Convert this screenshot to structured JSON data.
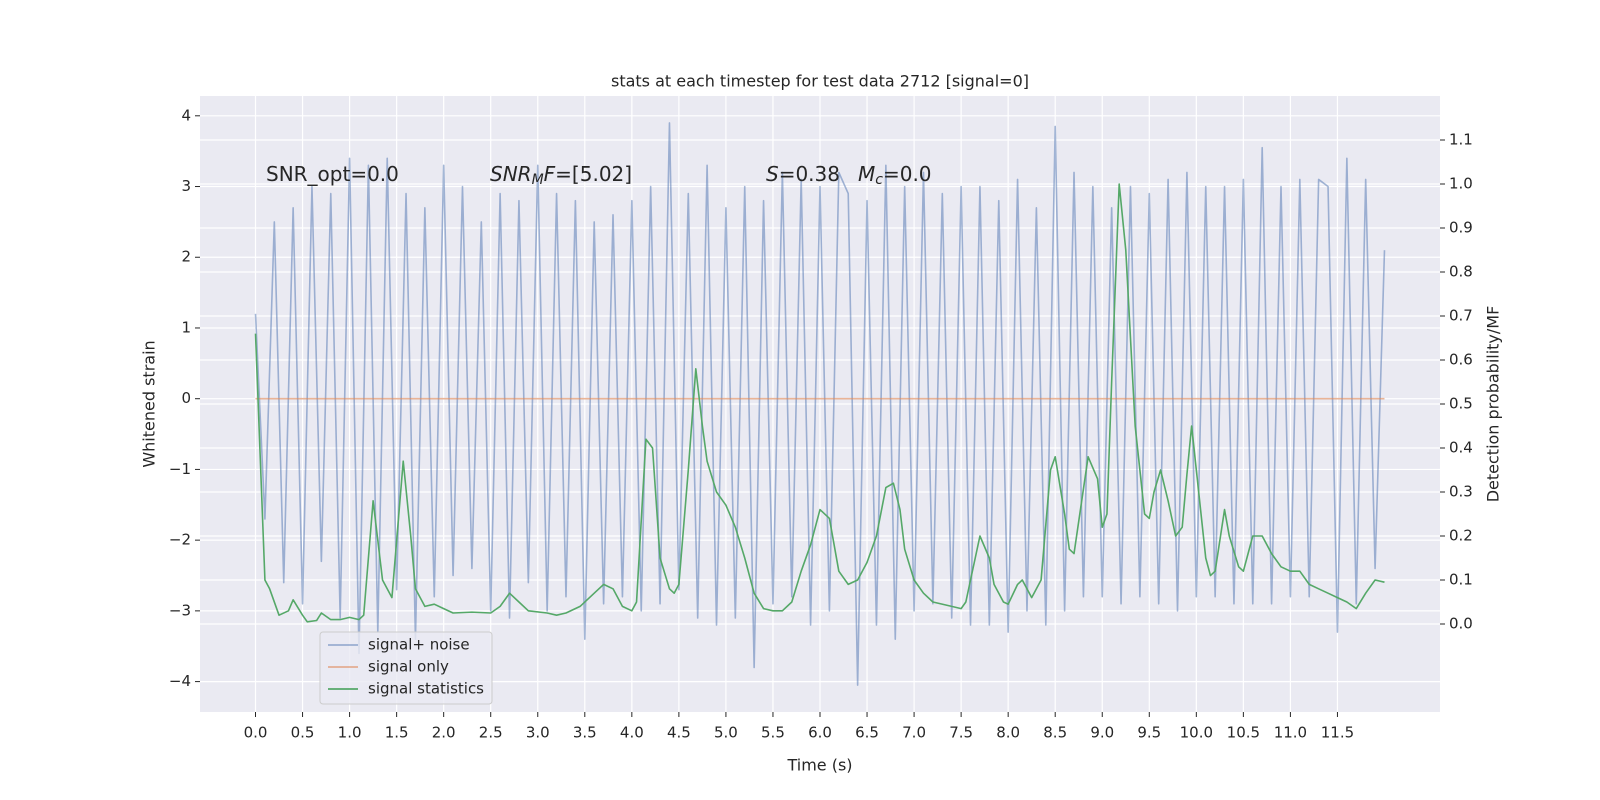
{
  "chart_data": {
    "type": "line",
    "title": "stats at each timestep for test data 2712 [signal=0]",
    "xlabel": "Time (s)",
    "ylabel": "Whitened strain",
    "y2label": "Detection probability/MF",
    "xlim": [
      -0.59,
      12.59
    ],
    "ylim": [
      -4.43,
      4.28
    ],
    "y2lim": [
      -0.2,
      1.2
    ],
    "xticks": [
      {
        "value": 0,
        "label": "0.0"
      },
      0.5,
      {
        "value": 1,
        "label": "1.0"
      },
      1.5,
      {
        "value": 2,
        "label": "2.0"
      },
      2.5,
      {
        "value": 3,
        "label": "3.0"
      },
      3.5,
      {
        "value": 4,
        "label": "4.0"
      },
      4.5,
      {
        "value": 5,
        "label": "5.0"
      },
      5.5,
      {
        "value": 6,
        "label": "6.0"
      },
      6.5,
      {
        "value": 7,
        "label": "7.0"
      },
      7.5,
      {
        "value": 8,
        "label": "8.0"
      },
      8.5,
      {
        "value": 9,
        "label": "9.0"
      },
      9.5,
      {
        "value": 10,
        "label": "10.0"
      },
      10.5,
      {
        "value": 11,
        "label": "11.0"
      },
      11.5
    ],
    "yticks": [
      {
        "value": -4,
        "label": "−4"
      },
      {
        "value": -3,
        "label": "−3"
      },
      {
        "value": -2,
        "label": "−2"
      },
      {
        "value": -1,
        "label": "−1"
      },
      0,
      1,
      2,
      3,
      4
    ],
    "y2ticks": [
      {
        "value": 0,
        "label": "0.0"
      },
      0.1,
      0.2,
      0.3,
      0.4,
      0.5,
      0.6,
      0.7,
      0.8,
      0.9,
      {
        "value": 1,
        "label": "1.0"
      },
      1.1
    ],
    "grid": true,
    "legend": "lower left",
    "annotations": [
      {
        "parts": [
          {
            "text": "SNR_opt=0.0",
            "style": "normal"
          }
        ]
      },
      {
        "parts": [
          {
            "text": "SNR",
            "style": "italic"
          },
          {
            "text": "M",
            "style": "sub"
          },
          {
            "text": "F",
            "style": "italic"
          },
          {
            "text": "=[5.02]",
            "style": "normal"
          }
        ]
      },
      {
        "parts": [
          {
            "text": "S",
            "style": "italic"
          },
          {
            "text": "=0.38",
            "style": "normal"
          }
        ]
      },
      {
        "parts": [
          {
            "text": "M",
            "style": "italic"
          },
          {
            "text": "c",
            "style": "sub"
          },
          {
            "text": "=0.0",
            "style": "normal"
          }
        ]
      }
    ],
    "series": [
      {
        "name": "signal+ noise",
        "color": "#4c72b0",
        "opacity": 0.5,
        "x": [
          0,
          0.1,
          0.2,
          0.3,
          0.4,
          0.5,
          0.6,
          0.7,
          0.8,
          0.9,
          1,
          1.1,
          1.2,
          1.3,
          1.4,
          1.5,
          1.6,
          1.7,
          1.8,
          1.9,
          2,
          2.1,
          2.2,
          2.3,
          2.4,
          2.5,
          2.6,
          2.7,
          2.8,
          2.9,
          3,
          3.1,
          3.2,
          3.3,
          3.4,
          3.5,
          3.6,
          3.7,
          3.8,
          3.9,
          4,
          4.1,
          4.2,
          4.3,
          4.4,
          4.5,
          4.6,
          4.7,
          4.8,
          4.9,
          5,
          5.1,
          5.2,
          5.3,
          5.4,
          5.5,
          5.6,
          5.7,
          5.8,
          5.9,
          6,
          6.1,
          6.2,
          6.3,
          6.4,
          6.5,
          6.6,
          6.7,
          6.8,
          6.9,
          7,
          7.1,
          7.2,
          7.3,
          7.4,
          7.5,
          7.6,
          7.7,
          7.8,
          7.9,
          8,
          8.1,
          8.2,
          8.3,
          8.4,
          8.5,
          8.6,
          8.7,
          8.8,
          8.9,
          9,
          9.1,
          9.2,
          9.3,
          9.4,
          9.5,
          9.6,
          9.7,
          9.8,
          9.9,
          10,
          10.1,
          10.2,
          10.3,
          10.4,
          10.5,
          10.6,
          10.7,
          10.8,
          10.9,
          11,
          11.1,
          11.2,
          11.3,
          11.4,
          11.5,
          11.6,
          11.7,
          11.8,
          11.9,
          12
        ],
        "values": [
          1.2,
          -1.7,
          2.5,
          -2.6,
          2.7,
          -2.9,
          3.0,
          -2.3,
          2.9,
          -3.1,
          3.4,
          -3.6,
          3.3,
          -3.3,
          3.4,
          -2.7,
          2.9,
          -3.4,
          2.7,
          -2.8,
          3.3,
          -2.5,
          3.0,
          -2.4,
          2.5,
          -3.0,
          2.9,
          -3.1,
          2.8,
          -2.6,
          3.3,
          -3.0,
          2.9,
          -2.8,
          2.8,
          -3.4,
          2.5,
          -2.9,
          2.6,
          -2.8,
          2.8,
          -3.0,
          3.0,
          -2.9,
          3.9,
          -2.7,
          2.9,
          -3.1,
          3.3,
          -3.2,
          2.7,
          -3.1,
          3.0,
          -3.8,
          2.8,
          -2.9,
          3.2,
          -2.8,
          3.1,
          -3.2,
          3.0,
          -3.0,
          3.2,
          2.9,
          -4.05,
          2.8,
          -3.2,
          3.3,
          -3.4,
          3.0,
          -3.0,
          3.2,
          -2.9,
          2.9,
          -3.1,
          3.0,
          -3.2,
          3.0,
          -3.2,
          2.8,
          -3.3,
          3.1,
          -3.0,
          2.7,
          -3.2,
          3.85,
          -3.0,
          3.2,
          -2.8,
          3.0,
          -2.8,
          2.7,
          -2.9,
          3.0,
          -2.8,
          2.9,
          -2.9,
          3.1,
          -3.0,
          3.2,
          -2.8,
          3.0,
          -2.8,
          3.0,
          -2.9,
          3.1,
          -2.9,
          3.55,
          -2.9,
          3.0,
          -2.8,
          3.1,
          -2.8,
          3.1,
          3.0,
          -3.3,
          3.4,
          -2.9,
          3.1,
          -2.4,
          2.1
        ]
      },
      {
        "name": "signal only",
        "color": "#dd8452",
        "opacity": 0.6,
        "x": [
          0,
          12
        ],
        "values": [
          0,
          0
        ]
      },
      {
        "name": "signal statistics",
        "color": "#55a868",
        "opacity": 1,
        "axis": "y2",
        "x": [
          0,
          0.1,
          0.15,
          0.25,
          0.35,
          0.4,
          0.5,
          0.55,
          0.65,
          0.7,
          0.8,
          0.9,
          1.0,
          1.1,
          1.15,
          1.25,
          1.35,
          1.45,
          1.57,
          1.65,
          1.7,
          1.8,
          1.9,
          2.0,
          2.1,
          2.3,
          2.5,
          2.6,
          2.7,
          2.8,
          2.9,
          3.1,
          3.2,
          3.3,
          3.45,
          3.6,
          3.7,
          3.8,
          3.9,
          4.0,
          4.05,
          4.15,
          4.22,
          4.3,
          4.4,
          4.45,
          4.5,
          4.6,
          4.68,
          4.75,
          4.8,
          4.9,
          5.0,
          5.1,
          5.2,
          5.3,
          5.4,
          5.5,
          5.6,
          5.7,
          5.8,
          5.9,
          6.0,
          6.1,
          6.2,
          6.3,
          6.4,
          6.5,
          6.6,
          6.7,
          6.78,
          6.85,
          6.9,
          7.0,
          7.1,
          7.2,
          7.4,
          7.5,
          7.55,
          7.6,
          7.7,
          7.8,
          7.85,
          7.95,
          8.0,
          8.1,
          8.15,
          8.25,
          8.35,
          8.45,
          8.5,
          8.6,
          8.65,
          8.7,
          8.85,
          8.95,
          9.0,
          9.05,
          9.1,
          9.18,
          9.25,
          9.35,
          9.45,
          9.5,
          9.55,
          9.62,
          9.7,
          9.78,
          9.85,
          9.9,
          9.95,
          10.0,
          10.1,
          10.15,
          10.2,
          10.3,
          10.35,
          10.45,
          10.5,
          10.6,
          10.7,
          10.8,
          10.9,
          11.0,
          11.1,
          11.2,
          11.3,
          11.4,
          11.5,
          11.6,
          11.7,
          11.8,
          11.9,
          12.0
        ],
        "values": [
          0.66,
          0.1,
          0.08,
          0.02,
          0.03,
          0.055,
          0.02,
          0.005,
          0.008,
          0.025,
          0.01,
          0.01,
          0.015,
          0.01,
          0.02,
          0.28,
          0.1,
          0.06,
          0.37,
          0.2,
          0.08,
          0.04,
          0.045,
          0.035,
          0.025,
          0.027,
          0.025,
          0.04,
          0.07,
          0.05,
          0.03,
          0.025,
          0.02,
          0.025,
          0.04,
          0.07,
          0.09,
          0.08,
          0.04,
          0.03,
          0.05,
          0.42,
          0.4,
          0.15,
          0.08,
          0.07,
          0.09,
          0.35,
          0.58,
          0.45,
          0.37,
          0.3,
          0.27,
          0.22,
          0.15,
          0.07,
          0.035,
          0.03,
          0.03,
          0.05,
          0.12,
          0.18,
          0.26,
          0.24,
          0.12,
          0.09,
          0.1,
          0.14,
          0.2,
          0.31,
          0.32,
          0.26,
          0.17,
          0.1,
          0.07,
          0.05,
          0.04,
          0.035,
          0.05,
          0.1,
          0.2,
          0.15,
          0.09,
          0.05,
          0.045,
          0.09,
          0.1,
          0.06,
          0.1,
          0.35,
          0.38,
          0.25,
          0.17,
          0.16,
          0.38,
          0.33,
          0.22,
          0.25,
          0.55,
          1.0,
          0.85,
          0.45,
          0.25,
          0.24,
          0.3,
          0.35,
          0.28,
          0.2,
          0.22,
          0.34,
          0.45,
          0.35,
          0.15,
          0.11,
          0.12,
          0.26,
          0.2,
          0.13,
          0.12,
          0.2,
          0.2,
          0.16,
          0.13,
          0.12,
          0.12,
          0.09,
          0.08,
          0.07,
          0.06,
          0.05,
          0.035,
          0.07,
          0.1,
          0.095
        ]
      }
    ]
  }
}
